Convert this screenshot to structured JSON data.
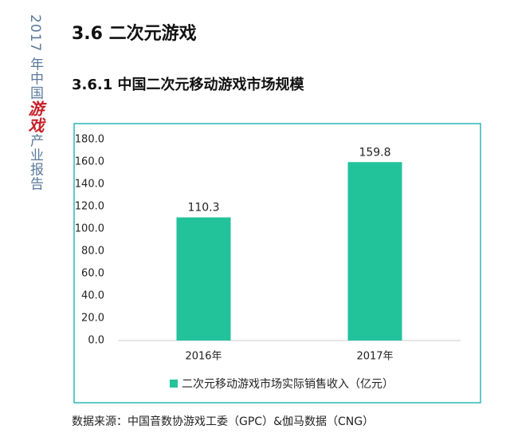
{
  "sidebar": {
    "prefix": "2017 年中国",
    "highlight": "游戏",
    "suffix": "产业报告"
  },
  "heading": "3.6 二次元游戏",
  "subheading": "3.6.1 中国二次元移动游戏市场规模",
  "source": "数据来源：中国音数协游戏工委（GPC）&伽马数据（CNG）",
  "chart_data": {
    "type": "bar",
    "categories": [
      "2016年",
      "2017年"
    ],
    "series": [
      {
        "name": "二次元移动游戏市场实际销售收入（亿元）",
        "color": "#22c29b",
        "values": [
          110.3,
          159.8
        ]
      }
    ],
    "ylim": [
      0,
      180
    ],
    "yticks": [
      {
        "value": 0,
        "label": "0.0"
      },
      {
        "value": 20,
        "label": "20.0"
      },
      {
        "value": 40,
        "label": "40.0"
      },
      {
        "value": 60,
        "label": "60.0"
      },
      {
        "value": 80,
        "label": "80.0"
      },
      {
        "value": 100,
        "label": "100.0"
      },
      {
        "value": 120,
        "label": "120.0"
      },
      {
        "value": 140,
        "label": "140.0"
      },
      {
        "value": 160,
        "label": "160.0"
      },
      {
        "value": 180,
        "label": "180.0"
      }
    ],
    "grid": false,
    "legend": "bottom"
  }
}
